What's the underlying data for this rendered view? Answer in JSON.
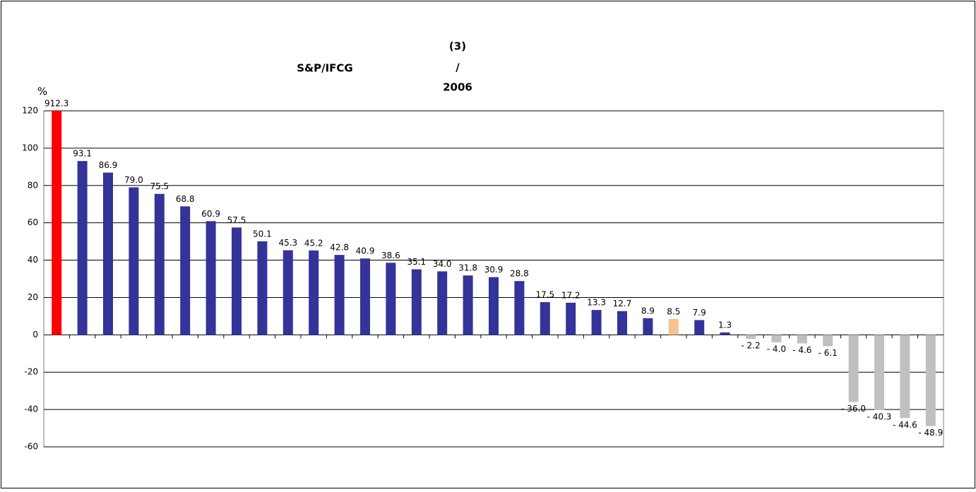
{
  "chart_data": {
    "type": "bar",
    "title_parts": [
      "S&P/IFCG",
      "(3)",
      "/",
      "2006"
    ],
    "y_label": "%",
    "categories": [
      null,
      null,
      null,
      null,
      null,
      null,
      null,
      null,
      null,
      null,
      null,
      null,
      null,
      null,
      null,
      null,
      null,
      null,
      null,
      null,
      null,
      null,
      null,
      null,
      null,
      null,
      null,
      null,
      null,
      null,
      null,
      null,
      null,
      null,
      null
    ],
    "values": [
      912.3,
      93.1,
      86.9,
      79.0,
      75.5,
      68.8,
      60.9,
      57.5,
      50.1,
      45.3,
      45.2,
      42.8,
      40.9,
      38.6,
      35.1,
      34.0,
      31.8,
      30.9,
      28.8,
      17.5,
      17.2,
      13.3,
      12.7,
      8.9,
      8.5,
      7.9,
      1.3,
      -2.2,
      -4.0,
      -4.6,
      -6.1,
      -36.0,
      -40.3,
      -44.6,
      -48.9
    ],
    "value_labels": [
      "912.3",
      "93.1",
      "86.9",
      "79.0",
      "75.5",
      "68.8",
      "60.9",
      "57.5",
      "50.1",
      "45.3",
      "45.2",
      "42.8",
      "40.9",
      "38.6",
      "35.1",
      "34.0",
      "31.8",
      "30.9",
      "28.8",
      "17.5",
      "17.2",
      "13.3",
      "12.7",
      "8.9",
      "8.5",
      "7.9",
      "1.3",
      "- 2.2",
      "- 4.0",
      "- 4.6",
      "- 6.1",
      "- 36.0",
      "- 40.3",
      "- 44.6",
      "- 48.9"
    ],
    "colors": [
      "#ff0000",
      "#333399",
      "#333399",
      "#333399",
      "#333399",
      "#333399",
      "#333399",
      "#333399",
      "#333399",
      "#333399",
      "#333399",
      "#333399",
      "#333399",
      "#333399",
      "#333399",
      "#333399",
      "#333399",
      "#333399",
      "#333399",
      "#333399",
      "#333399",
      "#333399",
      "#333399",
      "#333399",
      "#fac090",
      "#333399",
      "#333399",
      "#c0c0c0",
      "#c0c0c0",
      "#c0c0c0",
      "#c0c0c0",
      "#c0c0c0",
      "#c0c0c0",
      "#c0c0c0",
      "#c0c0c0"
    ],
    "ylim": [
      -60,
      120
    ],
    "yticks": [
      -60,
      -40,
      -20,
      0,
      20,
      40,
      60,
      80,
      100,
      120
    ],
    "grid": true
  }
}
